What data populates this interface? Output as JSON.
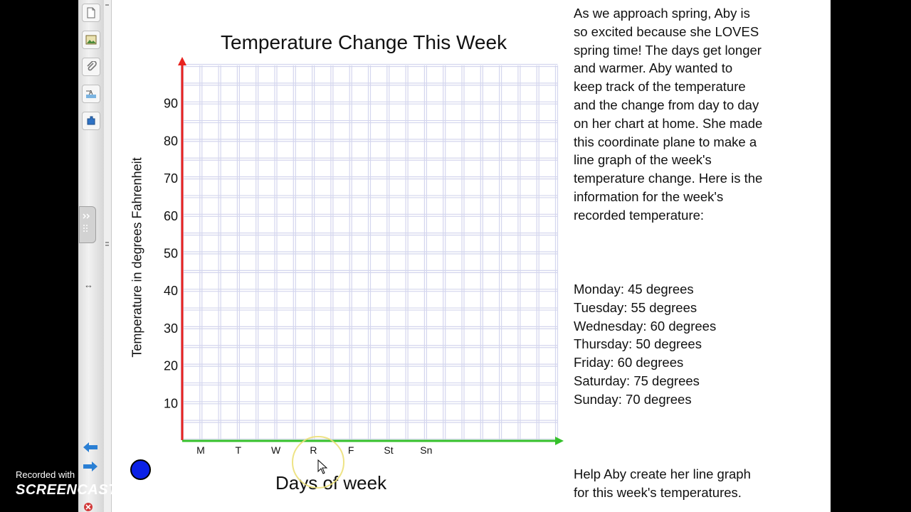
{
  "sidebar": {
    "buttons": [
      {
        "icon": "page-icon"
      },
      {
        "icon": "gallery-icon"
      },
      {
        "icon": "attachment-icon"
      },
      {
        "icon": "properties-icon"
      },
      {
        "icon": "add-ons-icon"
      }
    ],
    "resize_glyph": "↔"
  },
  "chart_data": {
    "type": "line",
    "title": "Temperature Change This Week",
    "xlabel": "Days of week",
    "ylabel": "Temperature in degrees Fahrenheit",
    "categories": [
      "M",
      "T",
      "W",
      "R",
      "F",
      "St",
      "Sn"
    ],
    "y_ticks": [
      10,
      20,
      30,
      40,
      50,
      60,
      70,
      80,
      90
    ],
    "ylim": [
      0,
      100
    ],
    "grid": true,
    "series": [],
    "colors": {
      "y_axis": "#e8231f",
      "x_axis": "#35c12b",
      "grid": "#d4d6ee"
    }
  },
  "story": {
    "intro": [
      "As we approach spring, Aby is",
      "so excited because she LOVES",
      "spring time!  The days get longer",
      "and warmer.  Aby wanted to",
      "keep track of the temperature",
      "and the change from day to day",
      "on her chart at home.  She made",
      "this coordinate plane to make a",
      "line graph of the week's",
      "temperature change.  Here is the",
      "information for the week's",
      "recorded temperature:"
    ],
    "readings": [
      "Monday: 45 degrees",
      "Tuesday: 55 degrees",
      "Wednesday:  60 degrees",
      "Thursday: 50 degrees",
      "Friday: 60 degrees",
      "Saturday:  75 degrees",
      "Sunday:  70 degrees"
    ],
    "prompt": [
      "Help Aby create her line graph",
      "for this week's temperatures."
    ]
  },
  "watermark": {
    "line1": "Recorded with",
    "line2": "SCREENCAST  MATIC"
  },
  "colors": {
    "marker": "#0b21e6",
    "nav_arrow": "#2a7fd4"
  }
}
